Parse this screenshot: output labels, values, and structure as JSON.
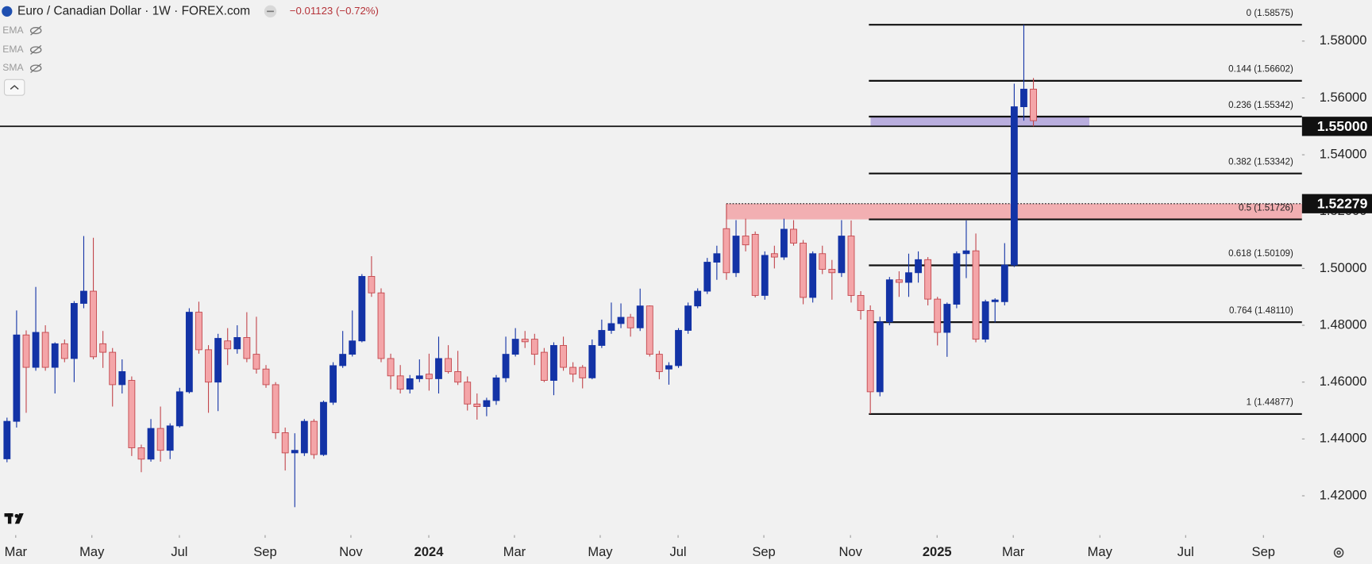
{
  "chart_data": {
    "type": "candlestick",
    "title": "Euro / Canadian Dollar · 1W · FOREX.com",
    "change": "−0.01123 (−0.72%)",
    "indicators": [
      "EMA",
      "EMA",
      "SMA"
    ],
    "up_color": "#1333a6",
    "down_color": "#f4a5a8",
    "down_border": "#c2454b",
    "categories": [
      null,
      null,
      null,
      null,
      null,
      null,
      null,
      null,
      null,
      null,
      null,
      null,
      null,
      null,
      null,
      null,
      null,
      null,
      null,
      null,
      null,
      null,
      null,
      null,
      null,
      null,
      null,
      null,
      null,
      null,
      null,
      null,
      null,
      null,
      null,
      null,
      null,
      null,
      null,
      null,
      null,
      null,
      null,
      null,
      null,
      null,
      null,
      null,
      null,
      null,
      null,
      null,
      null,
      null,
      null,
      null,
      null,
      null,
      null,
      null,
      null,
      null,
      null,
      null,
      null,
      null,
      null,
      null,
      null,
      null,
      null,
      null,
      null,
      null,
      null,
      null,
      null,
      null,
      null,
      null,
      null,
      null,
      null,
      null,
      null,
      null,
      null,
      null,
      null,
      null,
      null,
      null,
      null,
      null,
      null,
      null,
      null,
      null,
      null,
      null,
      null,
      null,
      null,
      null,
      null,
      null,
      null,
      null
    ],
    "open": [
      1.433,
      1.4462,
      1.4766,
      1.4652,
      1.4775,
      1.4652,
      1.4735,
      1.4683,
      1.4877,
      1.492,
      1.4735,
      1.4705,
      1.4591,
      1.4606,
      1.4369,
      1.4329,
      1.4437,
      1.436,
      1.4446,
      1.4566,
      1.4846,
      1.4714,
      1.46,
      1.4745,
      1.4717,
      1.4757,
      1.4698,
      1.4646,
      1.4591,
      1.4422,
      1.4351,
      1.4351,
      1.4462,
      1.4345,
      1.4529,
      1.4658,
      1.4698,
      1.4745,
      1.4972,
      1.4914,
      1.4683,
      1.4622,
      1.4575,
      1.4612,
      1.4628,
      1.4612,
      1.4683,
      1.4637,
      1.46,
      1.4523,
      1.4514,
      1.4535,
      1.4615,
      1.4698,
      1.4751,
      1.4751,
      1.4705,
      1.4606,
      1.4729,
      1.4652,
      1.4652,
      1.4615,
      1.4729,
      1.4782,
      1.4806,
      1.4828,
      1.4791,
      1.4868,
      1.4698,
      1.4646,
      1.4658,
      1.4782,
      1.4868,
      1.492,
      1.5022,
      1.514,
      1.4985,
      1.5114,
      1.512,
      1.4905,
      1.5052,
      1.504,
      1.5138,
      1.5089,
      1.4898,
      1.5052,
      1.4997,
      1.4985,
      1.5114,
      1.4905,
      1.4852,
      1.4566,
      1.4812,
      1.496,
      1.4951,
      1.4985,
      1.5031,
      1.4892,
      1.4775,
      1.4874,
      1.5052,
      1.5062,
      1.4751,
      1.4883,
      1.4883,
      1.5012,
      1.5569,
      1.5631
    ],
    "high": [
      1.4475,
      1.4852,
      1.4782,
      1.4935,
      1.48,
      1.474,
      1.475,
      1.4885,
      1.5114,
      1.5108,
      1.478,
      1.472,
      1.468,
      1.462,
      1.438,
      1.447,
      1.4514,
      1.4455,
      1.458,
      1.486,
      1.4883,
      1.473,
      1.477,
      1.479,
      1.48,
      1.4846,
      1.483,
      1.466,
      1.46,
      1.444,
      1.442,
      1.447,
      1.447,
      1.4535,
      1.467,
      1.478,
      1.4852,
      1.498,
      1.5043,
      1.493,
      1.47,
      1.466,
      1.4625,
      1.468,
      1.47,
      1.476,
      1.473,
      1.471,
      1.462,
      1.456,
      1.4545,
      1.4625,
      1.476,
      1.479,
      1.478,
      1.477,
      1.472,
      1.474,
      1.476,
      1.467,
      1.466,
      1.475,
      1.482,
      1.488,
      1.4877,
      1.484,
      1.4929,
      1.487,
      1.471,
      1.467,
      1.479,
      1.488,
      1.493,
      1.5037,
      1.508,
      1.52279,
      1.517,
      1.5175,
      1.513,
      1.506,
      1.508,
      1.5175,
      1.517,
      1.51,
      1.506,
      1.508,
      1.503,
      1.517,
      1.5169,
      1.492,
      1.487,
      1.483,
      1.497,
      1.499,
      1.5052,
      1.506,
      1.504,
      1.49,
      1.488,
      1.506,
      1.5169,
      1.5123,
      1.489,
      1.4895,
      1.5089,
      1.565,
      1.58575,
      1.567
    ],
    "low": [
      1.4318,
      1.444,
      1.4492,
      1.464,
      1.464,
      1.456,
      1.467,
      1.46,
      1.486,
      1.468,
      1.465,
      1.4514,
      1.456,
      1.434,
      1.4283,
      1.432,
      1.432,
      1.4329,
      1.444,
      1.456,
      1.47,
      1.4492,
      1.4498,
      1.466,
      1.47,
      1.467,
      1.463,
      1.458,
      1.44,
      1.4289,
      1.416,
      1.434,
      1.433,
      1.434,
      1.452,
      1.465,
      1.469,
      1.474,
      1.49,
      1.467,
      1.4575,
      1.456,
      1.456,
      1.46,
      1.457,
      1.456,
      1.463,
      1.459,
      1.45,
      1.4468,
      1.448,
      1.452,
      1.46,
      1.469,
      1.472,
      1.466,
      1.46,
      1.4554,
      1.464,
      1.46,
      1.4578,
      1.461,
      1.472,
      1.477,
      1.479,
      1.476,
      1.478,
      1.469,
      1.461,
      1.4591,
      1.465,
      1.477,
      1.486,
      1.491,
      1.496,
      1.496,
      1.497,
      1.506,
      1.4898,
      1.489,
      1.5,
      1.503,
      1.508,
      1.4874,
      1.488,
      1.498,
      1.489,
      1.497,
      1.488,
      1.482,
      1.44877,
      1.455,
      1.48,
      1.49,
      1.49,
      1.495,
      1.487,
      1.4729,
      1.4689,
      1.486,
      1.4966,
      1.474,
      1.474,
      1.481,
      1.487,
      1.5005,
      1.552,
      1.55
    ],
    "close": [
      1.4462,
      1.4766,
      1.4652,
      1.4775,
      1.4652,
      1.4735,
      1.4683,
      1.4877,
      1.492,
      1.4689,
      1.4705,
      1.4591,
      1.4637,
      1.4369,
      1.4329,
      1.4437,
      1.436,
      1.4446,
      1.4566,
      1.4846,
      1.4714,
      1.46,
      1.4754,
      1.4717,
      1.4757,
      1.4683,
      1.4646,
      1.4591,
      1.4422,
      1.4351,
      1.436,
      1.4462,
      1.4345,
      1.4529,
      1.4658,
      1.4698,
      1.4745,
      1.4972,
      1.4914,
      1.4683,
      1.4622,
      1.4575,
      1.4612,
      1.4622,
      1.4612,
      1.4683,
      1.4637,
      1.46,
      1.4523,
      1.4514,
      1.4535,
      1.4615,
      1.4698,
      1.4751,
      1.4742,
      1.4698,
      1.4606,
      1.4729,
      1.4652,
      1.4628,
      1.4615,
      1.4729,
      1.4782,
      1.4806,
      1.4828,
      1.4791,
      1.4868,
      1.4698,
      1.4637,
      1.4658,
      1.4782,
      1.4868,
      1.492,
      1.5022,
      1.5052,
      1.4985,
      1.5114,
      1.5083,
      1.4905,
      1.5046,
      1.504,
      1.5138,
      1.5089,
      1.4898,
      1.5052,
      1.4997,
      1.4985,
      1.5114,
      1.4905,
      1.4852,
      1.4566,
      1.4812,
      1.496,
      1.4951,
      1.4985,
      1.5031,
      1.4892,
      1.4775,
      1.4874,
      1.5052,
      1.5062,
      1.4751,
      1.4883,
      1.4889,
      1.5012,
      1.5569,
      1.5631,
      1.552
    ],
    "xlim": [
      -0.73,
      135.0
    ],
    "xticks": [
      {
        "value": 0.91,
        "label": "Mar"
      },
      {
        "value": 8.85,
        "label": "May"
      },
      {
        "value": 17.97,
        "label": "Jul"
      },
      {
        "value": 26.91,
        "label": "Sep"
      },
      {
        "value": 35.85,
        "label": "Nov"
      },
      {
        "value": 43.97,
        "label": "2024"
      },
      {
        "value": 52.9,
        "label": "Mar"
      },
      {
        "value": 61.84,
        "label": "May"
      },
      {
        "value": 69.96,
        "label": "Jul"
      },
      {
        "value": 78.9,
        "label": "Sep"
      },
      {
        "value": 87.93,
        "label": "Nov"
      },
      {
        "value": 96.96,
        "label": "2025"
      },
      {
        "value": 104.9,
        "label": "Mar"
      },
      {
        "value": 113.93,
        "label": "May"
      },
      {
        "value": 122.87,
        "label": "Jul"
      },
      {
        "value": 130.98,
        "label": "Sep"
      }
    ],
    "ylim": [
      1.40615,
      1.59446
    ],
    "yticks": [
      {
        "value": 1.42,
        "label": "1.42000"
      },
      {
        "value": 1.44,
        "label": "1.44000"
      },
      {
        "value": 1.46,
        "label": "1.46000"
      },
      {
        "value": 1.48,
        "label": "1.48000"
      },
      {
        "value": 1.5,
        "label": "1.50000"
      },
      {
        "value": 1.52,
        "label": "1.52000"
      },
      {
        "value": 1.54,
        "label": "1.54000"
      },
      {
        "value": 1.56,
        "label": "1.56000"
      },
      {
        "value": 1.58,
        "label": "1.58000"
      }
    ],
    "fib_levels": [
      {
        "value": 1.58575,
        "label": "0 (1.58575)"
      },
      {
        "value": 1.56602,
        "label": "0.144 (1.56602)"
      },
      {
        "value": 1.55342,
        "label": "0.236 (1.55342)"
      },
      {
        "value": 1.53342,
        "label": "0.382 (1.53342)"
      },
      {
        "value": 1.51726,
        "label": "0.5 (1.51726)"
      },
      {
        "value": 1.50109,
        "label": "0.618 (1.50109)"
      },
      {
        "value": 1.4811,
        "label": "0.764 (1.48110)"
      },
      {
        "value": 1.44877,
        "label": "1 (1.44877)"
      }
    ],
    "price_lines": [
      {
        "value": 1.55,
        "label": "1.55000"
      },
      {
        "value": 1.52279,
        "label": "1.52279"
      }
    ]
  }
}
